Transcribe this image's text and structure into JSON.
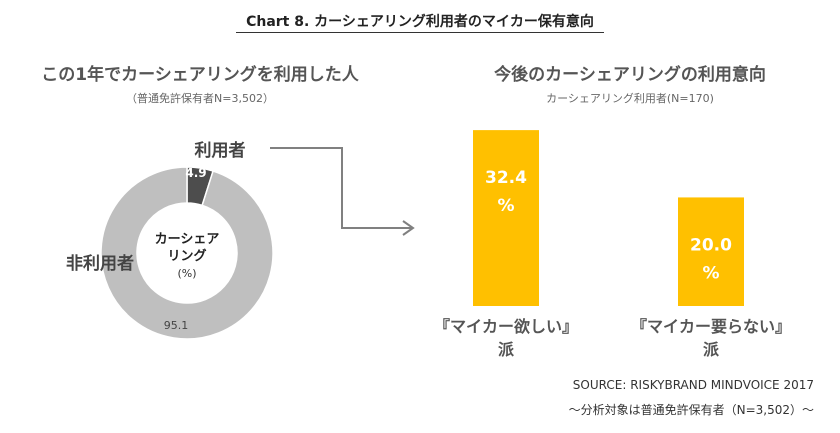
{
  "header": {
    "title": "Chart 8. カーシェアリング利用者のマイカー保有意向"
  },
  "left_panel": {
    "title": "この1年でカーシェアリングを利用した人",
    "subtitle": "（普通免許保有者N=3,502）"
  },
  "right_panel": {
    "title": "今後のカーシェアリングの利用意向",
    "subtitle": "カーシェアリング利用者(N=170)"
  },
  "colors": {
    "user_slice": "#4d4d4d",
    "non_user_slice": "#bfbfbf",
    "bar": "#ffc000",
    "bar_label": "#ffffff",
    "arrow": "#808080"
  },
  "chart_data": [
    {
      "type": "pie",
      "style": "donut",
      "unit": "(%)",
      "center_label_lines": [
        "カーシェア",
        "リング"
      ],
      "center_unit_label": "(%)",
      "categories": [
        "利用者",
        "非利用者"
      ],
      "values": [
        4.9,
        95.1
      ],
      "value_labels": [
        "4.9",
        "95.1"
      ]
    },
    {
      "type": "bar",
      "categories": [
        "『マイカー欲しい』派",
        "『マイカー要らない』派"
      ],
      "category_label_lines": [
        [
          "『マイカー欲しい』",
          "派"
        ],
        [
          "『マイカー要らない』",
          "派"
        ]
      ],
      "values": [
        32.4,
        20.0
      ],
      "value_labels": [
        "32.4",
        "20.0"
      ],
      "unit_label": "%",
      "ylim": [
        0,
        35
      ]
    }
  ],
  "footer": {
    "source": "SOURCE: RISKYBRAND MINDVOICE 2017",
    "note": "～分析対象は普通免許保有者（N=3,502）～"
  }
}
